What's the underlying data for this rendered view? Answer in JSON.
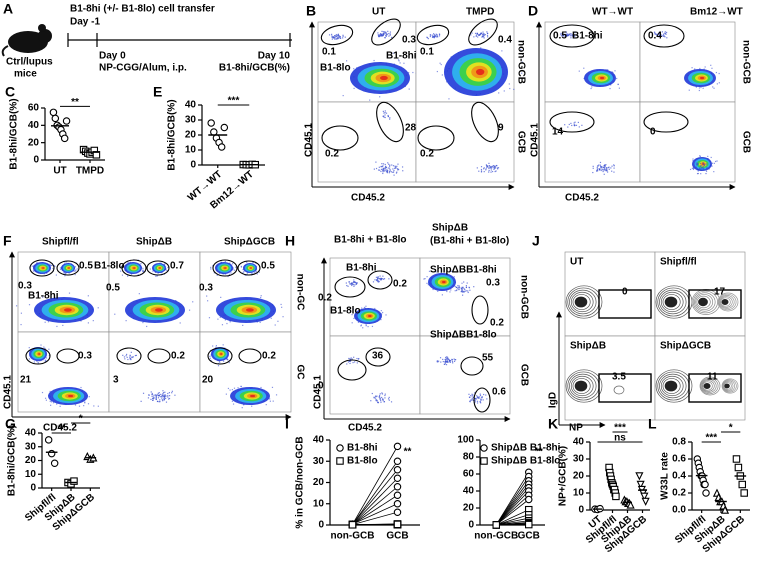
{
  "panels": {
    "A": {
      "letter": "A",
      "title": "B1-8hi (+/- B1-8lo) cell transfer",
      "day_start": "Day -1",
      "mouse": [
        "Ctrl/lupus",
        "mice"
      ],
      "day0": "Day 0",
      "treatment": "NP-CGG/Alum, i.p.",
      "day_end": "Day 10",
      "readout": "B1-8hi/GCB(%)"
    },
    "B": {
      "letter": "B",
      "columns": [
        "UT",
        "TMPD"
      ],
      "rows": [
        "non-GCB",
        "GCB"
      ],
      "x_axis": "CD45.2",
      "y_axis": "CD45.1",
      "gates": [
        "0.1",
        "0.3",
        "B1-8hi",
        "B1-8lo",
        "0.1",
        "0.4",
        "0.2",
        "28",
        "0.2",
        "9"
      ]
    },
    "D": {
      "letter": "D",
      "columns": [
        "WT→WT",
        "Bm12→WT"
      ],
      "rows": [
        "non-GCB",
        "GCB"
      ],
      "x_axis": "CD45.2",
      "y_axis": "CD45.1",
      "gates": [
        "0.5",
        "B1-8hi",
        "0.4",
        "14",
        "0"
      ]
    },
    "F": {
      "letter": "F",
      "columns": [
        "Shipfl/fl",
        "ShipΔB",
        "ShipΔGCB"
      ],
      "rows": [
        "non-GC",
        "GC"
      ],
      "x_axis": "CD45.2",
      "y_axis": "CD45.1",
      "gates": [
        "0.5",
        "B1-8lo",
        "0.3",
        "B1-8hi",
        "0.7",
        "0.5",
        "0.5",
        "0.3",
        "0.3",
        "21",
        "0.2",
        "3",
        "0.2",
        "20"
      ]
    },
    "H": {
      "letter": "H",
      "columns": [
        "B1-8hi + B1-8lo",
        "ShipΔB",
        "(B1-8hi + B1-8lo)"
      ],
      "rows": [
        "non-GCB",
        "GCB"
      ],
      "x_axis": "CD45.2",
      "y_axis": "CD45.1",
      "gates": [
        "B1-8hi",
        "0.2",
        "0.2",
        "B1-8lo",
        "ShipΔBB1-8hi",
        "0.3",
        "0.2",
        "ShipΔBB1-8lo",
        "36",
        "0",
        "55",
        "0.6"
      ]
    },
    "J": {
      "letter": "J",
      "panels": [
        "UT",
        "Shipfl/fl",
        "ShipΔB",
        "ShipΔGCB"
      ],
      "x_axis": "NP",
      "y_axis": "IgD",
      "gates": [
        "0",
        "17",
        "3.5",
        "11"
      ]
    }
  },
  "chart_data": [
    {
      "type": "dot",
      "letter": "C",
      "ylabel": "B1-8hi/GCB(%)",
      "categories": [
        "UT",
        "TMPD"
      ],
      "color": "#000000",
      "values": [
        [
          55,
          48,
          40,
          38,
          35,
          30,
          25,
          45
        ],
        [
          12,
          10,
          8,
          7,
          9,
          11,
          6
        ]
      ],
      "markers": [
        "circle",
        "square"
      ],
      "ylim": [
        0,
        60
      ],
      "yticks": [
        0,
        20,
        40,
        60
      ],
      "significance": [
        {
          "between": [
            "UT",
            "TMPD"
          ],
          "label": "**"
        }
      ]
    },
    {
      "type": "dot",
      "letter": "E",
      "ylabel": "B1-8hi/GCB(%)",
      "categories": [
        "WT→WT",
        "Bm12→WT"
      ],
      "color": "#000000",
      "values": [
        [
          28,
          22,
          18,
          15,
          12,
          25
        ],
        [
          0.3,
          0.2,
          0.1,
          0.4,
          0.2
        ]
      ],
      "markers": [
        "circle",
        "square"
      ],
      "ylim": [
        0,
        40
      ],
      "yticks": [
        0,
        10,
        20,
        30,
        40
      ],
      "significance": [
        {
          "between": [
            "WT→WT",
            "Bm12→WT"
          ],
          "label": "***"
        }
      ]
    },
    {
      "type": "dot",
      "letter": "G",
      "ylabel": "B1-8hi/GCB(%)",
      "categories": [
        "Shipfl/fl",
        "ShipΔB",
        "ShipΔGCB"
      ],
      "color": "#000000",
      "values": [
        [
          35,
          25,
          18
        ],
        [
          4,
          3,
          5
        ],
        [
          23,
          21,
          22
        ]
      ],
      "markers": [
        "circle",
        "square",
        "triangle"
      ],
      "ylim": [
        0,
        40
      ],
      "yticks": [
        0,
        10,
        20,
        30,
        40
      ],
      "significance": [
        {
          "between": [
            "Shipfl/fl",
            "ShipΔB"
          ],
          "label": "**"
        },
        {
          "between": [
            "ShipΔB",
            "ShipΔGCB"
          ],
          "label": "*"
        }
      ]
    },
    {
      "type": "paired",
      "letter": "I",
      "ylabel": "% in GCB/non-GCB",
      "categories": [
        "non-GCB",
        "GCB"
      ],
      "color": "#000000",
      "series": [
        {
          "name": "B1-8hi",
          "marker": "circle",
          "values": [
            [
              0.3,
              0.2,
              0.4,
              0.3,
              0.2,
              0.3,
              0.4,
              0.2
            ],
            [
              37,
              30,
              26,
              22,
              18,
              14,
              10,
              6
            ]
          ]
        },
        {
          "name": "B1-8lo",
          "marker": "square",
          "values": [
            [
              0.2,
              0.3,
              0.2,
              0.1,
              0.2,
              0.3,
              0.2,
              0.1
            ],
            [
              0.4,
              0.3,
              0.2,
              0.5,
              0.3,
              0.2,
              0.1,
              0.3
            ]
          ]
        }
      ],
      "ylim": [
        0,
        40
      ],
      "yticks": [
        0,
        10,
        20,
        30,
        40
      ],
      "significance": [
        {
          "at": "GCB",
          "label": "**"
        }
      ]
    },
    {
      "type": "paired",
      "categories": [
        "non-GCB",
        "GCB"
      ],
      "color": "#000000",
      "series": [
        {
          "name": "ShipΔB B1-8hi",
          "marker": "circle",
          "values": [
            [
              0.3,
              0.2,
              0.3,
              0.2,
              0.3,
              0.2,
              0.3,
              0.2
            ],
            [
              62,
              57,
              52,
              48,
              44,
              40,
              35,
              30
            ]
          ]
        },
        {
          "name": "ShipΔB B1-8lo",
          "marker": "square",
          "values": [
            [
              0.2,
              0.2,
              0.3,
              0.2,
              0.1,
              0.2,
              0.2,
              0.1
            ],
            [
              18,
              12,
              8,
              5,
              3,
              2,
              1,
              0.5
            ]
          ]
        }
      ],
      "ylim": [
        0,
        100
      ],
      "yticks": [
        0,
        20,
        40,
        60,
        80,
        100
      ],
      "significance": [
        {
          "at": "GCB",
          "label": "**"
        }
      ]
    },
    {
      "type": "dot",
      "letter": "K",
      "ylabel": "NP+/GCB(%)",
      "categories": [
        "UT",
        "Shipfl/fl",
        "ShipΔB",
        "ShipΔGCB"
      ],
      "color": "#000000",
      "values": [
        [
          0.5,
          0.3,
          0.8
        ],
        [
          25,
          22,
          20,
          18,
          16,
          15,
          14,
          12,
          12,
          10,
          8
        ],
        [
          6,
          5,
          5,
          4,
          4,
          3
        ],
        [
          20,
          15,
          12,
          10,
          8,
          5
        ]
      ],
      "markers": [
        "circle",
        "square",
        "triangle",
        "triangle-down"
      ],
      "ylim": [
        0,
        40
      ],
      "yticks": [
        0,
        10,
        20,
        30,
        40
      ],
      "significance": [
        {
          "between": [
            "UT",
            "ShipΔGCB"
          ],
          "label": "ns"
        },
        {
          "between": [
            "Shipfl/fl",
            "ShipΔB"
          ],
          "label": "***"
        }
      ]
    },
    {
      "type": "dot",
      "letter": "L",
      "ylabel": "W33L rate",
      "categories": [
        "Shipfl/fl",
        "ShipΔB",
        "ShipΔGCB"
      ],
      "color": "#000000",
      "values": [
        [
          0.6,
          0.55,
          0.5,
          0.45,
          0.4,
          0.4,
          0.35,
          0.3,
          0.3,
          0.2
        ],
        [
          0.2,
          0.15,
          0.1,
          0.1,
          0.05,
          0
        ],
        [
          0.6,
          0.5,
          0.4,
          0.3,
          0.2
        ]
      ],
      "markers": [
        "circle",
        "triangle",
        "square"
      ],
      "ylim": [
        0,
        0.8
      ],
      "yticks": [
        {
          "value": 0,
          "label": "0.0"
        },
        0.2,
        0.4,
        0.6,
        0.8
      ],
      "significance": [
        {
          "between": [
            "Shipfl/fl",
            "ShipΔB"
          ],
          "label": "***"
        },
        {
          "between": [
            "ShipΔB",
            "ShipΔGCB"
          ],
          "label": "*"
        }
      ]
    }
  ]
}
